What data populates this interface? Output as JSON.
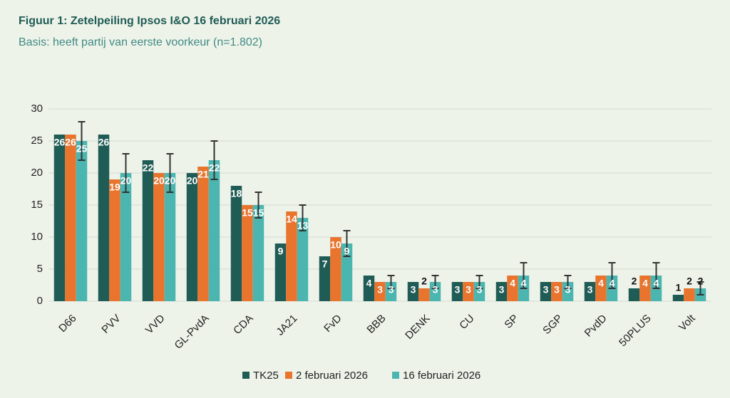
{
  "chart_data": {
    "type": "bar",
    "title": "Figuur 1: Zetelpeiling Ipsos I&O 16 februari 2026",
    "subtitle": "Basis: heeft partij van eerste voorkeur (n=1.802)",
    "categories": [
      "D66",
      "PVV",
      "VVD",
      "GL-PvdA",
      "CDA",
      "JA21",
      "FvD",
      "BBB",
      "DENK",
      "CU",
      "SP",
      "SGP",
      "PvdD",
      "50PLUS",
      "Volt"
    ],
    "series": [
      {
        "name": "TK25",
        "color": "#1f5c55",
        "values": [
          26,
          26,
          22,
          20,
          18,
          9,
          7,
          4,
          3,
          3,
          3,
          3,
          3,
          2,
          1
        ]
      },
      {
        "name": "2 februari 2026",
        "color": "#e8742e",
        "values": [
          26,
          19,
          20,
          21,
          15,
          14,
          10,
          3,
          2,
          3,
          4,
          3,
          4,
          4,
          2
        ]
      },
      {
        "name": "16 februari 2026",
        "color": "#4bb5b0",
        "values": [
          25,
          20,
          20,
          22,
          15,
          13,
          9,
          3,
          3,
          3,
          4,
          3,
          4,
          4,
          2
        ],
        "errors": [
          3,
          3,
          3,
          3,
          2,
          2,
          2,
          1,
          1,
          1,
          2,
          1,
          2,
          2,
          1
        ]
      }
    ],
    "ylim": [
      0,
      30
    ],
    "yticks": [
      0,
      5,
      10,
      15,
      20,
      25,
      30
    ],
    "grid": true,
    "legend": "bottom"
  }
}
